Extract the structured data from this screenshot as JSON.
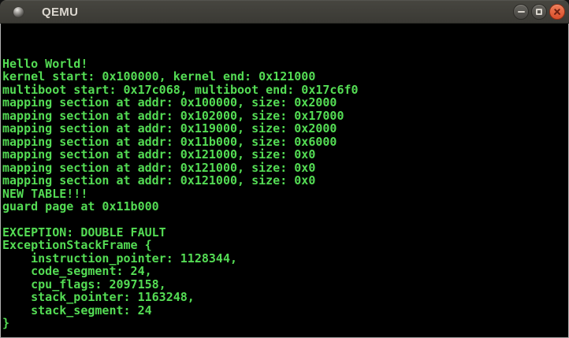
{
  "window": {
    "title": "QEMU",
    "controls": {
      "minimize_label": "minimize",
      "maximize_label": "maximize",
      "close_label": "close"
    }
  },
  "colors": {
    "titlebar_top": "#474640",
    "titlebar_bottom": "#3a3934",
    "title_text": "#dcd8d0",
    "close_button": "#e2603a",
    "terminal_background": "#000000",
    "terminal_text": "#54dc54",
    "frame_border": "#b2b2b2"
  },
  "terminal": {
    "lines": [
      "Hello World!",
      "kernel start: 0x100000, kernel end: 0x121000",
      "multiboot start: 0x17c068, multiboot end: 0x17c6f0",
      "mapping section at addr: 0x100000, size: 0x2000",
      "mapping section at addr: 0x102000, size: 0x17000",
      "mapping section at addr: 0x119000, size: 0x2000",
      "mapping section at addr: 0x11b000, size: 0x6000",
      "mapping section at addr: 0x121000, size: 0x0",
      "mapping section at addr: 0x121000, size: 0x0",
      "mapping section at addr: 0x121000, size: 0x0",
      "NEW TABLE!!!",
      "guard page at 0x11b000",
      "",
      "EXCEPTION: DOUBLE FAULT",
      "ExceptionStackFrame {",
      "    instruction_pointer: 1128344,",
      "    code_segment: 24,",
      "    cpu_flags: 2097158,",
      "    stack_pointer: 1163248,",
      "    stack_segment: 24",
      "}"
    ]
  }
}
